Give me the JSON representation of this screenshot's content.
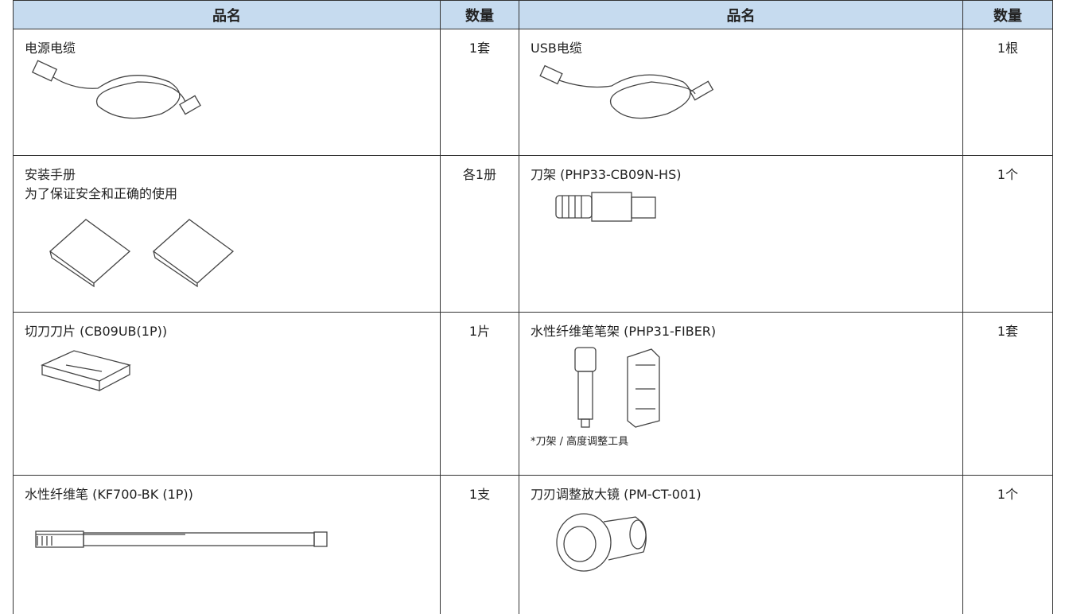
{
  "table": {
    "header": [
      "品名",
      "数量",
      "品名",
      "数量"
    ],
    "rows": [
      [
        {
          "name": "电源电缆",
          "qty": "1套"
        },
        {
          "name": "USB电缆",
          "qty": "1根"
        }
      ],
      [
        {
          "name": "安装手册",
          "subtitle": "为了保证安全和正确的使用",
          "qty": "各1册"
        },
        {
          "name": "刀架 (PHP33-CB09N-HS)",
          "qty": "1个"
        }
      ],
      [
        {
          "name": "切刀刀片 (CB09UB(1P))",
          "qty": "1片"
        },
        {
          "name": "水性纤维笔笔架 (PHP31-FIBER)",
          "qty": "1套",
          "note": "*刀架 / 高度调整工具"
        }
      ],
      [
        {
          "name": "水性纤维笔 (KF700-BK (1P))",
          "qty": "1支"
        },
        {
          "name": "刀刃调整放大镜 (PM-CT-001)",
          "qty": "1个"
        }
      ]
    ]
  }
}
